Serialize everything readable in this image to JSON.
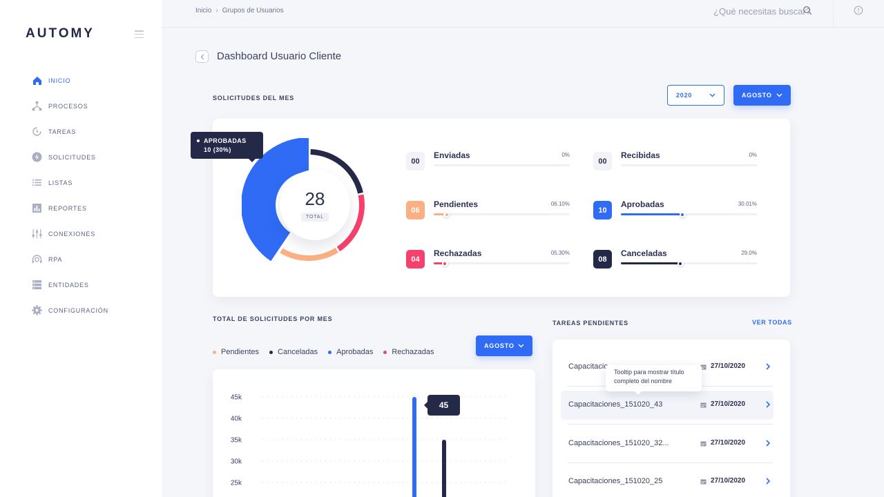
{
  "sidebar": {
    "logo": "AUTOMY",
    "items": [
      {
        "label": "INICIO",
        "icon": "home-icon",
        "active": true
      },
      {
        "label": "PROCESOS",
        "icon": "process-icon"
      },
      {
        "label": "TAREAS",
        "icon": "tasks-icon"
      },
      {
        "label": "SOLICITUDES",
        "icon": "bolt-icon"
      },
      {
        "label": "LISTAS",
        "icon": "list-icon"
      },
      {
        "label": "REPORTES",
        "icon": "chart-icon"
      },
      {
        "label": "CONEXIONES",
        "icon": "sliders-icon"
      },
      {
        "label": "RPA",
        "icon": "robot-icon"
      },
      {
        "label": "ENTIDADES",
        "icon": "database-icon"
      },
      {
        "label": "CONFIGURACIÓN",
        "icon": "gear-icon"
      }
    ]
  },
  "topbar": {
    "breadcrumb": [
      "Inicio",
      "Grupos de Usuarios"
    ],
    "search_placeholder": "¿Qué necesitas buscar?"
  },
  "page": {
    "title": "Dashboard Usuario Cliente"
  },
  "solicitudes": {
    "title": "SOLICITUDES DEL MES",
    "year": "2020",
    "month": "AGOSTO",
    "total": "28",
    "total_label": "TOTAL",
    "tooltip_line1": "APROBADAS",
    "tooltip_line2": "10 (30%)",
    "stats": [
      {
        "count": "00",
        "name": "Enviadas",
        "pct": "0%",
        "value": 0,
        "color": "#2B3150",
        "badge_bg": "#F2F3F7",
        "badge_fg": "#2B3150"
      },
      {
        "count": "00",
        "name": "Recibidas",
        "pct": "0%",
        "value": 0,
        "color": "#2B3150",
        "badge_bg": "#F2F3F7",
        "badge_fg": "#2B3150"
      },
      {
        "count": "06",
        "name": "Pendientes",
        "pct": "06.10%",
        "value": 0.061,
        "color": "#FBB083",
        "badge_bg": "#FBB083",
        "badge_fg": "#FFFFFF"
      },
      {
        "count": "10",
        "name": "Aprobadas",
        "pct": "30.01%",
        "value": 0.3001,
        "color": "#2F6BF5",
        "badge_bg": "#2F6BF5",
        "badge_fg": "#FFFFFF"
      },
      {
        "count": "04",
        "name": "Rechazadas",
        "pct": "05.30%",
        "value": 0.053,
        "color": "#F5416C",
        "badge_bg": "#F5416C",
        "badge_fg": "#FFFFFF"
      },
      {
        "count": "08",
        "name": "Canceladas",
        "pct": "29.0%",
        "value": 0.29,
        "color": "#232947",
        "badge_bg": "#232947",
        "badge_fg": "#FFFFFF"
      }
    ]
  },
  "monthly": {
    "title": "TOTAL DE SOLICITUDES POR MES",
    "month": "AGOSTO",
    "legend": [
      {
        "label": "Pendientes",
        "color": "#FBB083"
      },
      {
        "label": "Canceladas",
        "color": "#232947"
      },
      {
        "label": "Aprobadas",
        "color": "#2F6BF5"
      },
      {
        "label": "Rechazadas",
        "color": "#F5416C"
      }
    ],
    "value_tooltip": "45"
  },
  "chart_data": {
    "type": "bar",
    "yticks": [
      "45k",
      "40k",
      "35k",
      "30k",
      "25k"
    ],
    "ylim": [
      25,
      45
    ],
    "series": [
      {
        "name": "Aprobadas",
        "values": [
          45
        ]
      },
      {
        "name": "Canceladas",
        "values": [
          35
        ]
      }
    ],
    "grid": true
  },
  "tasks": {
    "title": "TAREAS PENDIENTES",
    "view_all": "VER TODAS",
    "tooltip": "Tooltip para mostrar título completo del nombre",
    "rows": [
      {
        "name": "Capacitacio",
        "date": "27/10/2020"
      },
      {
        "name": "Capacitaciones_151020_43",
        "date": "27/10/2020"
      },
      {
        "name": "Capacitaciones_151020_32...",
        "date": "27/10/2020"
      },
      {
        "name": "Capacitaciones_151020_25",
        "date": "27/10/2020"
      }
    ]
  },
  "colors": {
    "accent": "#2F6BF5",
    "navy": "#232947",
    "orange": "#FBB083",
    "pink": "#F5416C"
  }
}
